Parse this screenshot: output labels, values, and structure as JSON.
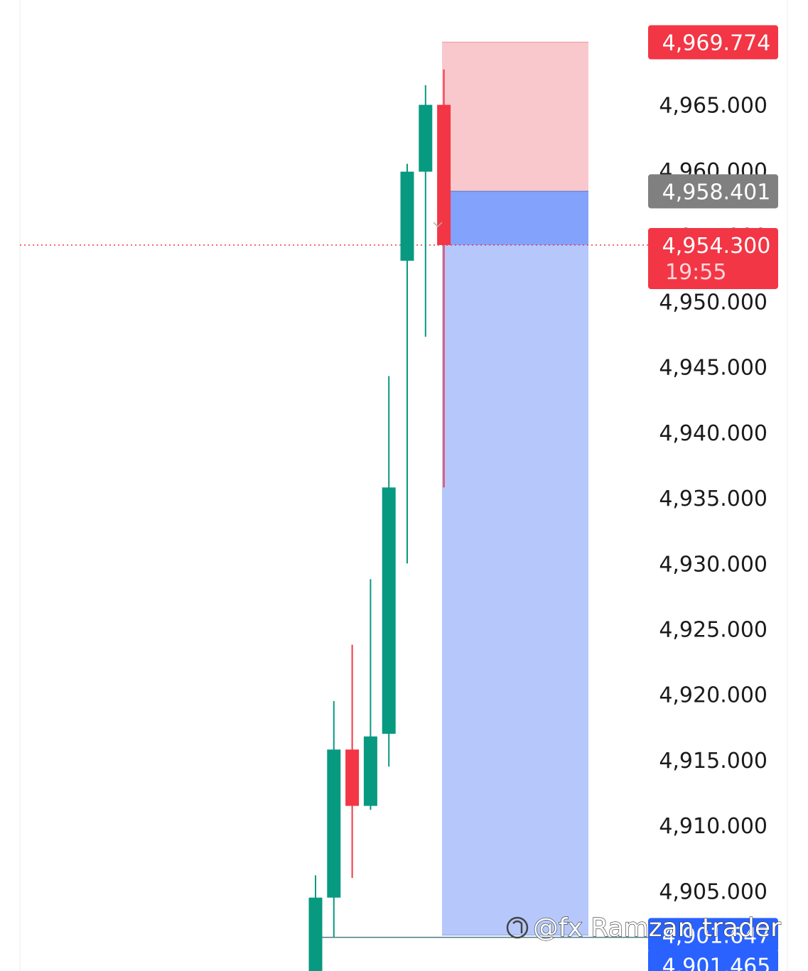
{
  "chart_data": {
    "type": "candlestick",
    "y_axis_ticks": [
      "4,965.000",
      "4,960.000",
      "4,955.000",
      "4,950.000",
      "4,945.000",
      "4,940.000",
      "4,935.000",
      "4,930.000",
      "4,925.000",
      "4,920.000",
      "4,915.000",
      "4,910.000",
      "4,905.000"
    ],
    "y_axis_tick_values": [
      4965,
      4960,
      4955,
      4950,
      4945,
      4940,
      4935,
      4930,
      4925,
      4920,
      4915,
      4910,
      4905
    ],
    "ylim": [
      4898.9,
      4973.0
    ],
    "candles": [
      {
        "open": 4898.5,
        "high": 4906.2,
        "low": 4898.0,
        "close": 4904.5
      },
      {
        "open": 4904.5,
        "high": 4919.5,
        "low": 4901.5,
        "close": 4915.8
      },
      {
        "open": 4915.8,
        "high": 4923.8,
        "low": 4906.0,
        "close": 4911.5
      },
      {
        "open": 4911.5,
        "high": 4928.8,
        "low": 4911.2,
        "close": 4916.8
      },
      {
        "open": 4917.0,
        "high": 4944.3,
        "low": 4914.5,
        "close": 4935.8
      },
      {
        "open": 4953.1,
        "high": 4960.5,
        "low": 4930.0,
        "close": 4959.9
      },
      {
        "open": 4959.9,
        "high": 4966.5,
        "low": 4947.3,
        "close": 4965.0
      },
      {
        "open": 4965.0,
        "high": 4967.7,
        "low": 4935.8,
        "close": 4954.3
      }
    ],
    "position": {
      "stop_loss": 4969.774,
      "entry": 4958.401,
      "take_profit": 4901.647
    },
    "horizontal_line": 4901.465
  },
  "labels": {
    "stop_loss_tag": "4,969.774",
    "entry_tag": "4,958.401",
    "current_price_tag": "4,954.300",
    "countdown": "19:55",
    "take_profit_tag": "4,901.647",
    "line_tag": "4,901.465"
  },
  "watermark": "@fx Ramzan trader",
  "colors": {
    "up": "#089981",
    "down": "#f23645",
    "stop_zone": "#f9c8cc",
    "target_zone": "#b6c8fb",
    "entry_band": "#82a2fc",
    "entry_tag": "#808080",
    "target_tag": "#2962ff",
    "line": "#4a7c8a"
  }
}
